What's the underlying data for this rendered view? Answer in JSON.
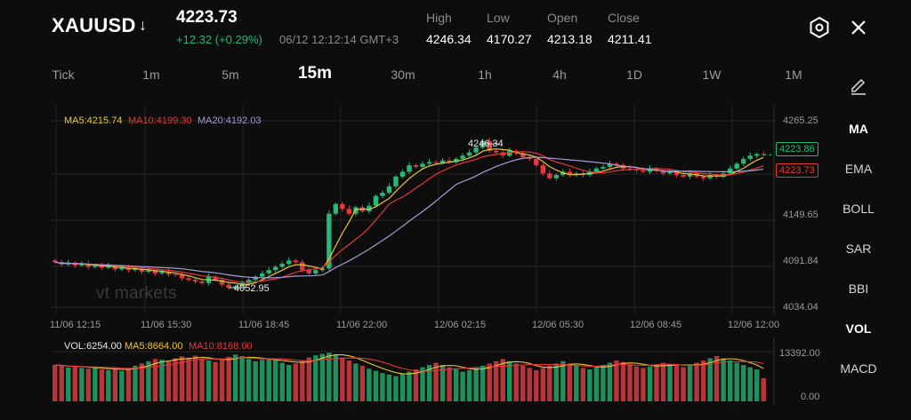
{
  "header": {
    "symbol": "XAUUSD",
    "symbol_arrow": "↓",
    "price": "4223.73",
    "change": "+12.32 (+0.29%)",
    "timestamp": "06/12 12:12:14 GMT+3",
    "stats": [
      {
        "label": "High",
        "value": "4246.34"
      },
      {
        "label": "Low",
        "value": "4170.27"
      },
      {
        "label": "Open",
        "value": "4213.18"
      },
      {
        "label": "Close",
        "value": "4211.41"
      }
    ],
    "settings_icon": "hexagon-gear-icon",
    "close_icon": "close-icon"
  },
  "timeframes": {
    "items": [
      "Tick",
      "1m",
      "5m",
      "15m",
      "30m",
      "1h",
      "4h",
      "1D",
      "1W",
      "1M"
    ],
    "active": "15m"
  },
  "indicators": {
    "draw_icon": "pencil-icon",
    "items": [
      "MA",
      "EMA",
      "BOLL",
      "SAR",
      "BBI",
      "VOL",
      "MACD"
    ],
    "active": [
      "MA",
      "VOL"
    ]
  },
  "main_legend": {
    "ma5": "MA5:4215.74",
    "ma10": "MA10:4199.30",
    "ma20": "MA20:4192.03"
  },
  "volume_legend": {
    "vol": "VOL:6254.00",
    "ma5": "MA5:8664.00",
    "ma10": "MA10:8168.00"
  },
  "price_axis": [
    "4265.25",
    "4149.65",
    "4091.84",
    "4034.04"
  ],
  "price_tags": {
    "bid": "4223.86",
    "ask": "4223.73"
  },
  "annotations": {
    "high": "4246.34",
    "low": "4052.95"
  },
  "time_axis": [
    "11/06 12:15",
    "11/06 15:30",
    "11/06 18:45",
    "11/06 22:00",
    "12/06 02:15",
    "12/06 05:30",
    "12/06 08:45",
    "12/06 12:00"
  ],
  "volume_axis": [
    "13392.00",
    "0.00"
  ],
  "watermark": "vt markets",
  "colors": {
    "up": "#26b874",
    "down": "#e5383b",
    "ma5": "#e8c53a",
    "ma10": "#e5383b",
    "ma20": "#a79bd6"
  },
  "chart_data": {
    "type": "candlestick",
    "y_range": [
      4034.04,
      4265.25
    ],
    "x_labels": [
      "11/06 12:15",
      "11/06 15:30",
      "11/06 18:45",
      "11/06 22:00",
      "12/06 02:15",
      "12/06 05:30",
      "12/06 08:45",
      "12/06 12:00"
    ],
    "closes": [
      4090,
      4087,
      4089,
      4086,
      4088,
      4084,
      4086,
      4083,
      4085,
      4081,
      4083,
      4080,
      4082,
      4078,
      4080,
      4076,
      4078,
      4075,
      4074,
      4070,
      4068,
      4066,
      4064,
      4072,
      4068,
      4062,
      4058,
      4060,
      4064,
      4068,
      4072,
      4076,
      4080,
      4084,
      4088,
      4092,
      4090,
      4080,
      4076,
      4080,
      4082,
      4150,
      4162,
      4156,
      4150,
      4158,
      4153,
      4160,
      4172,
      4176,
      4184,
      4196,
      4202,
      4210,
      4208,
      4212,
      4214,
      4213,
      4216,
      4214,
      4218,
      4222,
      4226,
      4232,
      4240,
      4228,
      4226,
      4222,
      4228,
      4225,
      4220,
      4218,
      4210,
      4200,
      4194,
      4198,
      4202,
      4198,
      4200,
      4198,
      4202,
      4206,
      4208,
      4212,
      4210,
      4206,
      4205,
      4204,
      4202,
      4206,
      4203,
      4200,
      4202,
      4198,
      4196,
      4200,
      4196,
      4194,
      4198,
      4196,
      4200,
      4206,
      4212,
      4218,
      4222,
      4224,
      4223
    ],
    "volume_range": [
      0,
      13392
    ],
    "volumes_note": "per-bar volumes estimated",
    "volumes": [
      9800,
      9600,
      9100,
      9400,
      9000,
      8800,
      9200,
      8600,
      8400,
      8800,
      8200,
      9000,
      9600,
      10200,
      10800,
      11400,
      11200,
      10800,
      11600,
      12100,
      11800,
      12300,
      11500,
      11000,
      10600,
      11200,
      12000,
      12600,
      12200,
      11400,
      10800,
      11200,
      11600,
      11000,
      10400,
      9800,
      10200,
      11000,
      11800,
      12400,
      12800,
      13100,
      12600,
      11800,
      11000,
      10200,
      9600,
      8800,
      8200,
      7600,
      7200,
      6800,
      7400,
      8000,
      8600,
      9200,
      9800,
      10400,
      9800,
      9200,
      8600,
      8000,
      8400,
      9000,
      9600,
      10200,
      10800,
      11400,
      10800,
      10200,
      9600,
      9000,
      8400,
      9000,
      9600,
      10200,
      10800,
      10200,
      9600,
      9000,
      8600,
      9200,
      9800,
      10400,
      11000,
      10600,
      10000,
      9400,
      9000,
      9400,
      9800,
      10400,
      10000,
      9600,
      9200,
      9800,
      10400,
      11000,
      11600,
      12200,
      11600,
      11000,
      10400,
      9800,
      9200,
      8600,
      6254
    ]
  }
}
